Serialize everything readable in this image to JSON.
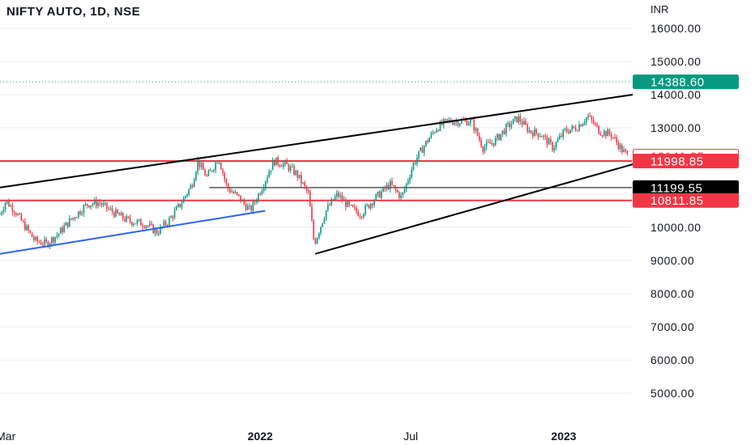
{
  "header": {
    "symbol_title": "NIFTY AUTO, 1D, NSE",
    "currency": "INR"
  },
  "chart_data": {
    "type": "candlestick",
    "title": "NIFTY AUTO, 1D, NSE",
    "currency": "INR",
    "ylim": [
      4600,
      16600
    ],
    "y_ticks": [
      "16000.00",
      "15000.00",
      "14000.00",
      "13000.00",
      "12000.00",
      "11000.00",
      "10000.00",
      "9000.00",
      "8000.00",
      "7000.00",
      "6000.00",
      "5000.00"
    ],
    "y_tick_values": [
      16000,
      15000,
      14000,
      13000,
      12000,
      11000,
      10000,
      9000,
      8000,
      7000,
      6000,
      5000
    ],
    "x_ticks": [
      {
        "label": "Mar",
        "date": "2021-03"
      },
      {
        "label": "2022",
        "date": "2022-01"
      },
      {
        "label": "Jul",
        "date": "2022-07"
      },
      {
        "label": "2023",
        "date": "2023-01"
      }
    ],
    "price_path": [
      [
        "2021-02-22",
        10400
      ],
      [
        "2021-03-01",
        10800
      ],
      [
        "2021-03-12",
        10500
      ],
      [
        "2021-03-22",
        10100
      ],
      [
        "2021-04-05",
        9600
      ],
      [
        "2021-04-19",
        9500
      ],
      [
        "2021-05-03",
        9800
      ],
      [
        "2021-05-17",
        10200
      ],
      [
        "2021-06-07",
        10700
      ],
      [
        "2021-06-21",
        10750
      ],
      [
        "2021-07-05",
        10500
      ],
      [
        "2021-07-26",
        10200
      ],
      [
        "2021-08-16",
        10100
      ],
      [
        "2021-08-30",
        9850
      ],
      [
        "2021-09-13",
        10200
      ],
      [
        "2021-09-27",
        10700
      ],
      [
        "2021-10-11",
        11300
      ],
      [
        "2021-10-18",
        12000
      ],
      [
        "2021-10-29",
        11500
      ],
      [
        "2021-11-12",
        12100
      ],
      [
        "2021-11-22",
        11200
      ],
      [
        "2021-12-06",
        10900
      ],
      [
        "2021-12-20",
        10500
      ],
      [
        "2022-01-03",
        11200
      ],
      [
        "2022-01-17",
        12000
      ],
      [
        "2022-01-31",
        11900
      ],
      [
        "2022-02-14",
        11600
      ],
      [
        "2022-02-28",
        11000
      ],
      [
        "2022-03-07",
        9500
      ],
      [
        "2022-03-21",
        10500
      ],
      [
        "2022-04-04",
        11000
      ],
      [
        "2022-04-18",
        10600
      ],
      [
        "2022-05-02",
        10400
      ],
      [
        "2022-05-16",
        10800
      ],
      [
        "2022-06-06",
        11300
      ],
      [
        "2022-06-20",
        10900
      ],
      [
        "2022-07-04",
        11900
      ],
      [
        "2022-07-18",
        12500
      ],
      [
        "2022-08-01",
        13000
      ],
      [
        "2022-08-15",
        13200
      ],
      [
        "2022-08-29",
        13200
      ],
      [
        "2022-09-12",
        13200
      ],
      [
        "2022-09-26",
        12400
      ],
      [
        "2022-10-10",
        12600
      ],
      [
        "2022-10-24",
        13000
      ],
      [
        "2022-11-07",
        13300
      ],
      [
        "2022-11-21",
        12900
      ],
      [
        "2022-12-05",
        12800
      ],
      [
        "2022-12-19",
        12400
      ],
      [
        "2023-01-02",
        12900
      ],
      [
        "2023-01-16",
        13000
      ],
      [
        "2023-01-30",
        13350
      ],
      [
        "2023-02-13",
        12900
      ],
      [
        "2023-02-27",
        12800
      ],
      [
        "2023-03-13",
        12300
      ],
      [
        "2023-03-20",
        12141.95
      ]
    ],
    "price_labels": [
      {
        "value": 14388.6,
        "text": "14388.60",
        "color": "#089981",
        "style": "filled",
        "dotted_line": true
      },
      {
        "value": 12141.95,
        "text": "12141.95",
        "color": "#f23645",
        "style": "outline"
      },
      {
        "value": 11998.85,
        "text": "11998.85",
        "color": "#f23645",
        "style": "filled"
      },
      {
        "value": 11199.55,
        "text": "11199.55",
        "color": "#000000",
        "style": "filled"
      },
      {
        "value": 10811.85,
        "text": "10811.85",
        "color": "#f23645",
        "style": "filled"
      }
    ],
    "horizontal_lines": [
      {
        "value": 11998.85,
        "color": "#f23645",
        "from_date": "2021-02-22"
      },
      {
        "value": 10811.85,
        "color": "#f23645",
        "from_date": "2021-02-22"
      },
      {
        "value": 11199.55,
        "color": "#000000",
        "from_date": "2021-11-01",
        "thin": true
      }
    ],
    "trend_lines": [
      {
        "color": "#000000",
        "from": [
          "2021-02-22",
          11200
        ],
        "to": [
          "2023-03-25",
          14000
        ]
      },
      {
        "color": "#000000",
        "from": [
          "2022-03-08",
          9200
        ],
        "to": [
          "2023-03-25",
          11900
        ]
      },
      {
        "color": "#2962ff",
        "from": [
          "2021-02-22",
          9200
        ],
        "to": [
          "2022-01-07",
          10500
        ]
      }
    ],
    "colors": {
      "up": "#089981",
      "down": "#f23645",
      "grid": "#eeeeee",
      "axis_text": "#131722"
    }
  }
}
